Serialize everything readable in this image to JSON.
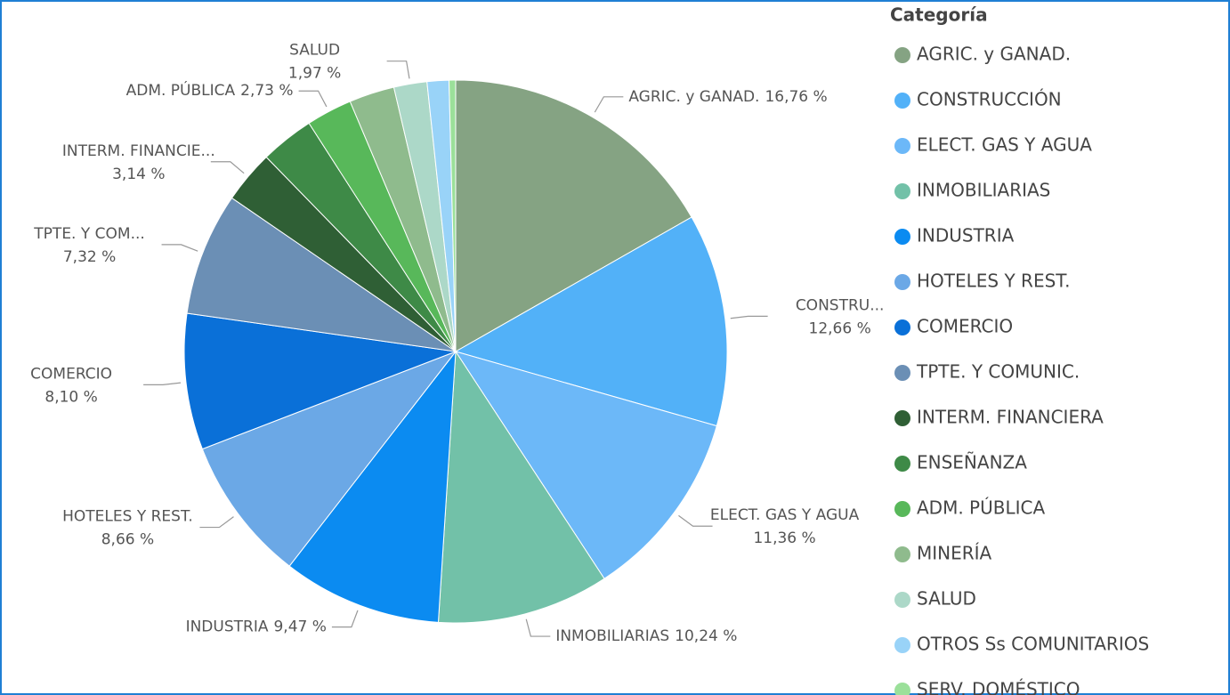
{
  "chart_data": {
    "type": "pie",
    "legend_title": "Categoría",
    "legend": "right",
    "categories": [
      "AGRIC. y GANAD.",
      "CONSTRUCCIÓN",
      "ELECT. GAS Y AGUA",
      "INMOBILIARIAS",
      "INDUSTRIA",
      "HOTELES Y REST.",
      "COMERCIO",
      "TPTE. Y COMUNIC.",
      "INTERM. FINANCIERA",
      "ENSEÑANZA",
      "ADM. PÚBLICA",
      "MINERÍA",
      "SALUD",
      "OTROS Ss COMUNITARIOS",
      "SERV. DOMÉSTICO"
    ],
    "values": [
      16.76,
      12.66,
      11.36,
      10.24,
      9.47,
      8.66,
      8.1,
      7.32,
      3.14,
      3.2,
      2.73,
      2.7,
      1.97,
      1.3,
      0.39
    ],
    "value_labels": [
      "16,76 %",
      "12,66 %",
      "11,36 %",
      "10,24 %",
      "9,47 %",
      "8,66 %",
      "8,10 %",
      "7,32 %",
      "3,14 %",
      null,
      "2,73 %",
      null,
      "1,97 %",
      null,
      null
    ],
    "slice_labels": [
      "AGRIC. y GANAD.",
      "CONSTRU...",
      "ELECT. GAS Y AGUA",
      "INMOBILIARIAS",
      "INDUSTRIA",
      "HOTELES Y REST.",
      "COMERCIO",
      "TPTE. Y COM...",
      "INTERM. FINANCIE...",
      null,
      "ADM. PÚBLICA",
      null,
      "SALUD",
      null,
      null
    ],
    "colors": [
      "#85a383",
      "#52b1f8",
      "#6cb8f8",
      "#72c1a8",
      "#0b8bf1",
      "#6ba8e6",
      "#0a70d8",
      "#6b8fb5",
      "#2f5f35",
      "#3e8a47",
      "#58b85a",
      "#8fbb8d",
      "#acd8c8",
      "#99d3f8",
      "#9be09a"
    ]
  }
}
